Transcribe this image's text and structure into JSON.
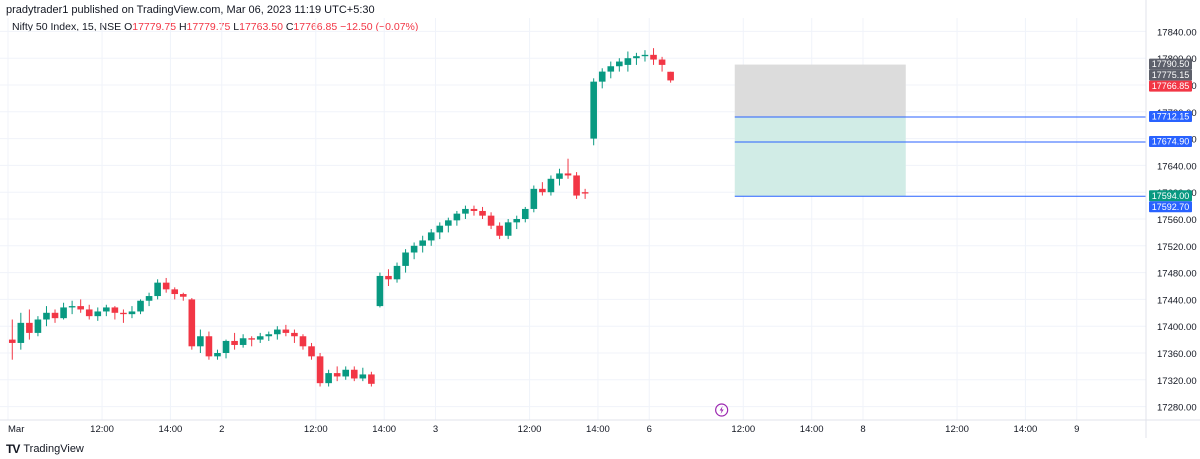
{
  "header": {
    "published": "pradytrader1 published on TradingView.com, Mar 06, 2023 11:19 UTC+5:30",
    "symbol": "Nifty 50 Index, 15, NSE",
    "open_label": "O",
    "open": "17779.75",
    "high_label": "H",
    "high": "17779.75",
    "low_label": "L",
    "low": "17763.50",
    "close_label": "C",
    "close": "17766.85",
    "change": "−12.50 (−0.07%)"
  },
  "footer": {
    "brand": "TradingView",
    "logo_mark": "TV"
  },
  "colors": {
    "up": "#089981",
    "down": "#f23645",
    "grid": "#f0f3fa",
    "price_line": "#2962ff",
    "target_zone": "#d1ece6",
    "stop_zone": "#dcdcdc",
    "axis_text": "#131722"
  },
  "icons": {
    "flash": "lightning-icon"
  },
  "chart_data": {
    "type": "candlestick",
    "y_axis": {
      "min": 17260,
      "max": 17860,
      "ticks": [
        17840,
        17800,
        17760,
        17720,
        17680,
        17640,
        17600,
        17560,
        17520,
        17480,
        17440,
        17400,
        17360,
        17320,
        17280
      ]
    },
    "x_axis_labels": [
      {
        "label": "Mar",
        "bar": 0
      },
      {
        "label": "12:00",
        "bar": 11
      },
      {
        "label": "14:00",
        "bar": 19
      },
      {
        "label": "2",
        "bar": 25
      },
      {
        "label": "12:00",
        "bar": 36
      },
      {
        "label": "14:00",
        "bar": 44
      },
      {
        "label": "3",
        "bar": 50
      },
      {
        "label": "12:00",
        "bar": 61
      },
      {
        "label": "14:00",
        "bar": 69
      },
      {
        "label": "6",
        "bar": 75
      },
      {
        "label": "12:00",
        "bar": 86
      },
      {
        "label": "14:00",
        "bar": 94
      },
      {
        "label": "8",
        "bar": 100
      },
      {
        "label": "12:00",
        "bar": 111
      },
      {
        "label": "14:00",
        "bar": 119
      },
      {
        "label": "9",
        "bar": 125
      }
    ],
    "candles": [
      [
        17380,
        17410,
        17350,
        17375
      ],
      [
        17375,
        17420,
        17365,
        17405
      ],
      [
        17405,
        17425,
        17380,
        17390
      ],
      [
        17390,
        17415,
        17385,
        17410
      ],
      [
        17410,
        17430,
        17400,
        17420
      ],
      [
        17420,
        17425,
        17405,
        17412
      ],
      [
        17412,
        17435,
        17410,
        17428
      ],
      [
        17428,
        17438,
        17418,
        17430
      ],
      [
        17430,
        17440,
        17420,
        17425
      ],
      [
        17425,
        17432,
        17410,
        17415
      ],
      [
        17415,
        17428,
        17408,
        17422
      ],
      [
        17422,
        17432,
        17415,
        17428
      ],
      [
        17428,
        17430,
        17410,
        17420
      ],
      [
        17420,
        17425,
        17405,
        17418
      ],
      [
        17418,
        17430,
        17412,
        17422
      ],
      [
        17422,
        17440,
        17418,
        17438
      ],
      [
        17438,
        17450,
        17430,
        17445
      ],
      [
        17445,
        17470,
        17440,
        17465
      ],
      [
        17465,
        17472,
        17450,
        17455
      ],
      [
        17455,
        17458,
        17440,
        17448
      ],
      [
        17448,
        17450,
        17438,
        17444
      ],
      [
        17440,
        17442,
        17365,
        17370
      ],
      [
        17370,
        17395,
        17360,
        17385
      ],
      [
        17385,
        17392,
        17350,
        17355
      ],
      [
        17355,
        17365,
        17350,
        17360
      ],
      [
        17360,
        17380,
        17352,
        17378
      ],
      [
        17378,
        17390,
        17365,
        17372
      ],
      [
        17372,
        17388,
        17368,
        17382
      ],
      [
        17382,
        17385,
        17370,
        17380
      ],
      [
        17380,
        17390,
        17375,
        17385
      ],
      [
        17385,
        17392,
        17378,
        17388
      ],
      [
        17388,
        17400,
        17380,
        17395
      ],
      [
        17395,
        17402,
        17385,
        17390
      ],
      [
        17390,
        17395,
        17375,
        17385
      ],
      [
        17385,
        17388,
        17365,
        17370
      ],
      [
        17370,
        17375,
        17350,
        17355
      ],
      [
        17355,
        17360,
        17310,
        17315
      ],
      [
        17315,
        17335,
        17310,
        17330
      ],
      [
        17330,
        17340,
        17318,
        17325
      ],
      [
        17325,
        17340,
        17320,
        17335
      ],
      [
        17335,
        17340,
        17318,
        17322
      ],
      [
        17322,
        17338,
        17318,
        17328
      ],
      [
        17328,
        17332,
        17310,
        17314
      ],
      [
        17430,
        17480,
        17428,
        17475
      ],
      [
        17475,
        17485,
        17460,
        17470
      ],
      [
        17470,
        17495,
        17465,
        17490
      ],
      [
        17490,
        17515,
        17480,
        17510
      ],
      [
        17510,
        17525,
        17500,
        17520
      ],
      [
        17520,
        17535,
        17510,
        17528
      ],
      [
        17528,
        17545,
        17520,
        17540
      ],
      [
        17540,
        17555,
        17530,
        17550
      ],
      [
        17550,
        17562,
        17540,
        17558
      ],
      [
        17558,
        17572,
        17550,
        17568
      ],
      [
        17568,
        17580,
        17560,
        17575
      ],
      [
        17575,
        17580,
        17565,
        17572
      ],
      [
        17572,
        17578,
        17560,
        17565
      ],
      [
        17565,
        17570,
        17545,
        17550
      ],
      [
        17550,
        17555,
        17530,
        17535
      ],
      [
        17535,
        17560,
        17530,
        17555
      ],
      [
        17555,
        17565,
        17545,
        17560
      ],
      [
        17560,
        17578,
        17555,
        17575
      ],
      [
        17575,
        17610,
        17570,
        17605
      ],
      [
        17605,
        17615,
        17595,
        17600
      ],
      [
        17600,
        17625,
        17595,
        17620
      ],
      [
        17620,
        17635,
        17610,
        17628
      ],
      [
        17628,
        17650,
        17620,
        17625
      ],
      [
        17625,
        17630,
        17590,
        17595
      ],
      [
        17600,
        17605,
        17590,
        17598
      ],
      [
        17680,
        17770,
        17670,
        17765
      ],
      [
        17765,
        17785,
        17755,
        17780
      ],
      [
        17780,
        17795,
        17770,
        17788
      ],
      [
        17788,
        17800,
        17780,
        17795
      ],
      [
        17790,
        17810,
        17780,
        17800
      ],
      [
        17800,
        17808,
        17790,
        17803
      ],
      [
        17803,
        17812,
        17795,
        17805
      ],
      [
        17805,
        17815,
        17790,
        17798
      ],
      [
        17798,
        17802,
        17780,
        17790
      ],
      [
        17779.75,
        17779.75,
        17763.5,
        17766.85
      ]
    ],
    "position": {
      "entry": 17712.15,
      "stop": 17790.5,
      "target": 17594.0,
      "start_bar": 85,
      "end_bar": 105
    },
    "horizontal_lines": [
      17712.15,
      17674.9,
      17594.0
    ],
    "price_labels": [
      {
        "text": "17790.50",
        "value": 17790.5,
        "bg": "#5d606b"
      },
      {
        "text": "17775.15",
        "value": 17775.15,
        "bg": "#5d606b"
      },
      {
        "text": "17766.85",
        "value": 17766.85,
        "bg": "#f23645"
      },
      {
        "text": "17712.15",
        "value": 17712.15,
        "bg": "#2962ff"
      },
      {
        "text": "17674.90",
        "value": 17674.9,
        "bg": "#2962ff"
      },
      {
        "text": "17594.00",
        "value": 17594.0,
        "bg": "#089981"
      },
      {
        "text": "17592.70",
        "value": 17592.7,
        "bg": "#2962ff"
      }
    ]
  }
}
